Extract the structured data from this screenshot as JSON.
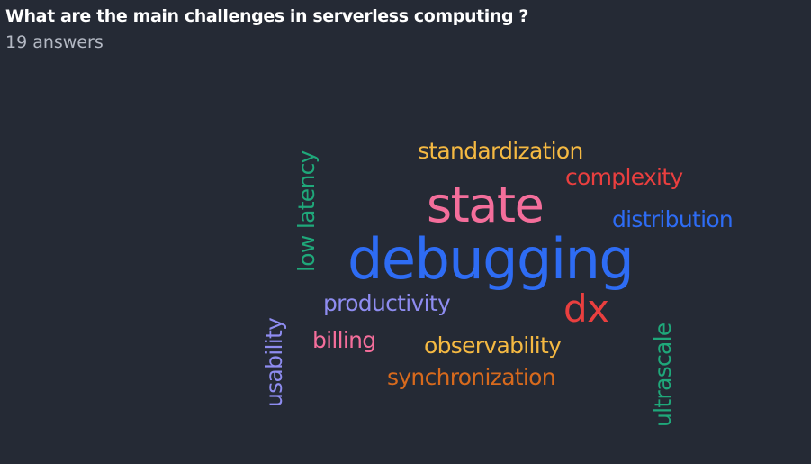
{
  "question": {
    "title": "What are the main challenges in serverless computing ?",
    "answers_count": "19 answers"
  },
  "word_cloud": {
    "words": [
      {
        "text": "debugging",
        "color": "#2e6cf4"
      },
      {
        "text": "state",
        "color": "#f46e9b"
      },
      {
        "text": "dx",
        "color": "#ea3f3f"
      },
      {
        "text": "standardization",
        "color": "#f5b942"
      },
      {
        "text": "complexity",
        "color": "#ea3f3f"
      },
      {
        "text": "distribution",
        "color": "#2e6cf4"
      },
      {
        "text": "productivity",
        "color": "#8e8cf0"
      },
      {
        "text": "billing",
        "color": "#f46e9b"
      },
      {
        "text": "observability",
        "color": "#f5b942"
      },
      {
        "text": "synchronization",
        "color": "#d86a1d"
      },
      {
        "text": "low latency",
        "color": "#1fa87a"
      },
      {
        "text": "usability",
        "color": "#8e8cf0"
      },
      {
        "text": "ultrascale",
        "color": "#1fa87a"
      }
    ]
  },
  "colors": {
    "background": "#252a35",
    "title": "#ffffff",
    "subtitle": "#b4b9c4"
  }
}
